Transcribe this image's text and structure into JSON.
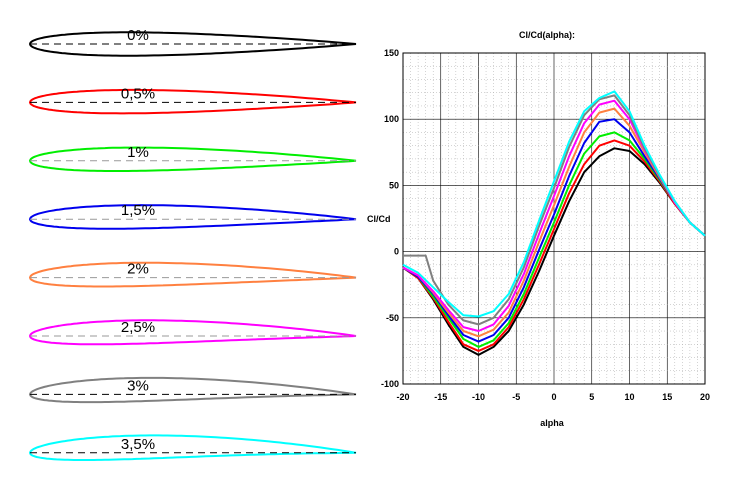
{
  "airfoils": [
    {
      "label": "0%",
      "color": "#000000",
      "camber": 0.0
    },
    {
      "label": "0,5%",
      "color": "#ff0000",
      "camber": 0.005
    },
    {
      "label": "1%",
      "color": "#00ee00",
      "camber": 0.01
    },
    {
      "label": "1,5%",
      "color": "#0000ee",
      "camber": 0.015
    },
    {
      "label": "2%",
      "color": "#ff8040",
      "camber": 0.02
    },
    {
      "label": "2,5%",
      "color": "#ff00ff",
      "camber": 0.025
    },
    {
      "label": "3%",
      "color": "#808080",
      "camber": 0.03
    },
    {
      "label": "3,5%",
      "color": "#00ffff",
      "camber": 0.035
    }
  ],
  "chart_data": {
    "type": "line",
    "title": "Cl/Cd(alpha):",
    "xlabel": "alpha",
    "ylabel": "Cl/Cd",
    "xlim": [
      -20,
      20
    ],
    "ylim": [
      -100,
      150
    ],
    "xticks": [
      "-20",
      "-15",
      "-10",
      "-5",
      "0",
      "5",
      "10",
      "15",
      "20"
    ],
    "yticks": [
      "150",
      "100",
      "50",
      "0",
      "-50",
      "-100"
    ],
    "grid": true,
    "series": [
      {
        "color": "#000000",
        "x": [
          -20,
          -18,
          -16,
          -14,
          -12,
          -10,
          -8,
          -6,
          -4,
          -2,
          0,
          2,
          4,
          6,
          8,
          10,
          12,
          14,
          16,
          18,
          20
        ],
        "y": [
          -12,
          -20,
          -36,
          -55,
          -72,
          -78,
          -72,
          -60,
          -40,
          -15,
          12,
          38,
          60,
          72,
          78,
          76,
          66,
          52,
          36,
          22,
          12
        ]
      },
      {
        "color": "#ff0000",
        "x": [
          -20,
          -18,
          -16,
          -14,
          -12,
          -10,
          -8,
          -6,
          -4,
          -2,
          0,
          2,
          4,
          6,
          8,
          10,
          12,
          14,
          16,
          18,
          20
        ],
        "y": [
          -12,
          -20,
          -35,
          -53,
          -70,
          -75,
          -70,
          -57,
          -36,
          -10,
          17,
          44,
          66,
          80,
          84,
          80,
          68,
          53,
          36,
          22,
          12
        ]
      },
      {
        "color": "#00ee00",
        "x": [
          -20,
          -18,
          -16,
          -14,
          -12,
          -10,
          -8,
          -6,
          -4,
          -2,
          0,
          2,
          4,
          6,
          8,
          10,
          12,
          14,
          16,
          18,
          20
        ],
        "y": [
          -12,
          -19,
          -34,
          -50,
          -66,
          -72,
          -67,
          -54,
          -32,
          -5,
          22,
          50,
          74,
          87,
          90,
          84,
          70,
          54,
          37,
          22,
          12
        ]
      },
      {
        "color": "#0000ee",
        "x": [
          -20,
          -18,
          -16,
          -14,
          -12,
          -10,
          -8,
          -6,
          -4,
          -2,
          0,
          2,
          4,
          6,
          8,
          10,
          12,
          14,
          16,
          18,
          20
        ],
        "y": [
          -12,
          -19,
          -32,
          -48,
          -63,
          -68,
          -63,
          -50,
          -27,
          1,
          28,
          57,
          82,
          98,
          100,
          90,
          72,
          55,
          37,
          22,
          12
        ]
      },
      {
        "color": "#ff8040",
        "x": [
          -20,
          -18,
          -16,
          -14,
          -12,
          -10,
          -8,
          -6,
          -4,
          -2,
          0,
          2,
          4,
          6,
          8,
          10,
          12,
          14,
          16,
          18,
          20
        ],
        "y": [
          -12,
          -18,
          -31,
          -46,
          -60,
          -64,
          -59,
          -46,
          -22,
          7,
          35,
          64,
          90,
          105,
          108,
          95,
          75,
          56,
          37,
          22,
          12
        ]
      },
      {
        "color": "#ff00ff",
        "x": [
          -20,
          -18,
          -16,
          -14,
          -12,
          -10,
          -8,
          -6,
          -4,
          -2,
          0,
          2,
          4,
          6,
          8,
          10,
          12,
          14,
          16,
          18,
          20
        ],
        "y": [
          -12,
          -18,
          -30,
          -44,
          -57,
          -60,
          -55,
          -41,
          -17,
          13,
          42,
          72,
          97,
          111,
          114,
          100,
          77,
          57,
          37,
          22,
          12
        ]
      },
      {
        "color": "#808080",
        "x": [
          -20,
          -18,
          -17,
          -16,
          -14,
          -12,
          -10,
          -8,
          -6,
          -4,
          -2,
          0,
          2,
          4,
          6,
          8,
          10,
          12,
          14,
          16,
          18,
          20
        ],
        "y": [
          -3,
          -3,
          -3,
          -22,
          -40,
          -52,
          -55,
          -50,
          -36,
          -12,
          19,
          48,
          79,
          103,
          115,
          118,
          103,
          78,
          57,
          38,
          22,
          12
        ]
      },
      {
        "color": "#00ffff",
        "x": [
          -20,
          -18,
          -16,
          -14,
          -12,
          -10,
          -8,
          -6,
          -4,
          -2,
          0,
          2,
          4,
          6,
          8,
          10,
          12,
          14,
          16,
          18,
          20
        ],
        "y": [
          -10,
          -16,
          -27,
          -38,
          -48,
          -49,
          -45,
          -32,
          -8,
          23,
          53,
          83,
          106,
          116,
          121,
          106,
          80,
          58,
          38,
          22,
          12
        ]
      }
    ]
  }
}
